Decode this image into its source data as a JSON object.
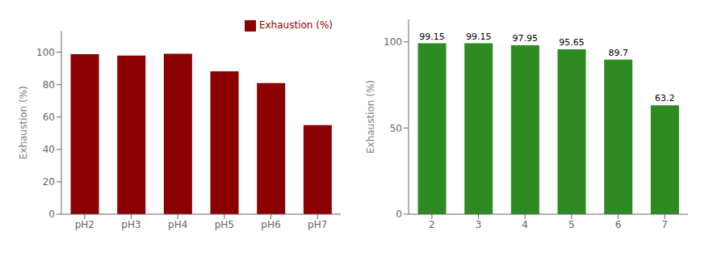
{
  "chart_data": [
    {
      "type": "bar",
      "categories": [
        "pH2",
        "pH3",
        "pH4",
        "pH5",
        "pH6",
        "pH7"
      ],
      "series": [
        {
          "name": "Exhaustion (%)",
          "color": "#8B0000",
          "values": [
            98.8,
            97.9,
            99.0,
            88.2,
            81.0,
            55.0
          ]
        }
      ],
      "ylabel": "Exhaustion (%)",
      "ylim": [
        0,
        113
      ],
      "yticks": [
        0,
        20,
        40,
        60,
        80,
        100
      ],
      "legend": "upper right"
    },
    {
      "type": "bar",
      "categories": [
        "2",
        "3",
        "4",
        "5",
        "6",
        "7"
      ],
      "values": [
        99.15,
        99.15,
        97.95,
        95.65,
        89.7,
        63.2
      ],
      "color": "#2E8B22",
      "ylabel": "Exhaustion (%)",
      "ylim": [
        0,
        113
      ],
      "yticks": [
        0,
        50,
        100
      ],
      "data_labels": true
    }
  ]
}
